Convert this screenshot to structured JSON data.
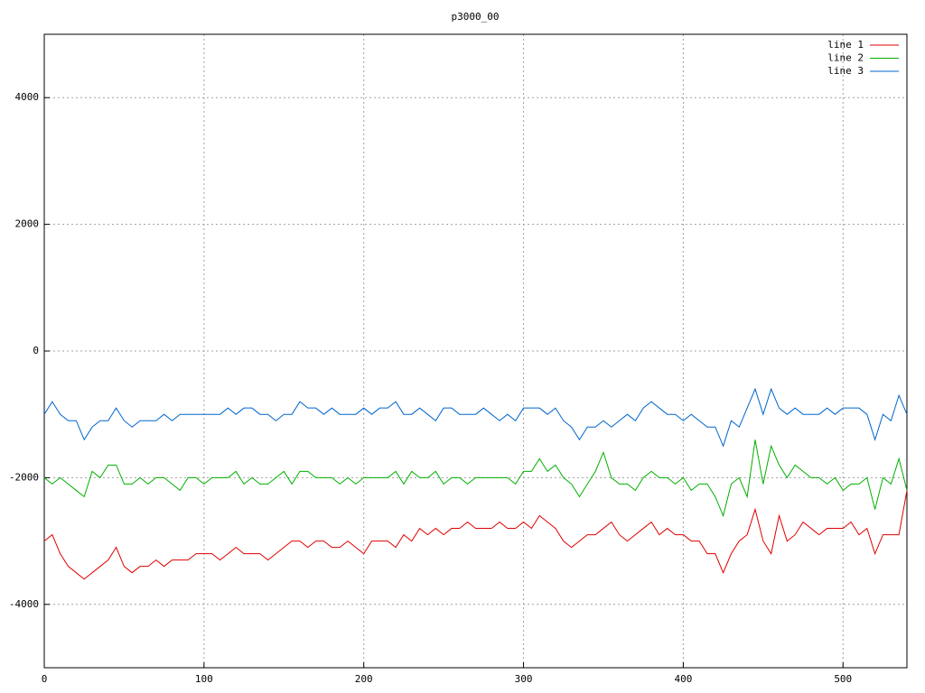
{
  "chart_data": {
    "type": "line",
    "title": "p3000_00",
    "x": [
      0,
      5,
      10,
      15,
      20,
      25,
      30,
      35,
      40,
      45,
      50,
      55,
      60,
      65,
      70,
      75,
      80,
      85,
      90,
      95,
      100,
      105,
      110,
      115,
      120,
      125,
      130,
      135,
      140,
      145,
      150,
      155,
      160,
      165,
      170,
      175,
      180,
      185,
      190,
      195,
      200,
      205,
      210,
      215,
      220,
      225,
      230,
      235,
      240,
      245,
      250,
      255,
      260,
      265,
      270,
      275,
      280,
      285,
      290,
      295,
      300,
      305,
      310,
      315,
      320,
      325,
      330,
      335,
      340,
      345,
      350,
      355,
      360,
      365,
      370,
      375,
      380,
      385,
      390,
      395,
      400,
      405,
      410,
      415,
      420,
      425,
      430,
      435,
      440,
      445,
      450,
      455,
      460,
      465,
      470,
      475,
      480,
      485,
      490,
      495,
      500,
      505,
      510,
      515,
      520,
      525,
      530,
      535,
      540
    ],
    "series": [
      {
        "name": "line 1",
        "color": "#e00000",
        "values": [
          -3000,
          -2900,
          -3200,
          -3400,
          -3500,
          -3600,
          -3500,
          -3400,
          -3300,
          -3100,
          -3400,
          -3500,
          -3400,
          -3400,
          -3300,
          -3400,
          -3300,
          -3300,
          -3300,
          -3200,
          -3200,
          -3200,
          -3300,
          -3200,
          -3100,
          -3200,
          -3200,
          -3200,
          -3300,
          -3200,
          -3100,
          -3000,
          -3000,
          -3100,
          -3000,
          -3000,
          -3100,
          -3100,
          -3000,
          -3100,
          -3200,
          -3000,
          -3000,
          -3000,
          -3100,
          -2900,
          -3000,
          -2800,
          -2900,
          -2800,
          -2900,
          -2800,
          -2800,
          -2700,
          -2800,
          -2800,
          -2800,
          -2700,
          -2800,
          -2800,
          -2700,
          -2800,
          -2600,
          -2700,
          -2800,
          -3000,
          -3100,
          -3000,
          -2900,
          -2900,
          -2800,
          -2700,
          -2900,
          -3000,
          -2900,
          -2800,
          -2700,
          -2900,
          -2800,
          -2900,
          -2900,
          -3000,
          -3000,
          -3200,
          -3200,
          -3500,
          -3200,
          -3000,
          -2900,
          -2500,
          -3000,
          -3200,
          -2600,
          -3000,
          -2900,
          -2700,
          -2800,
          -2900,
          -2800,
          -2800,
          -2800,
          -2700,
          -2900,
          -2800,
          -3200,
          -2900,
          -2900,
          -2900,
          -2200
        ]
      },
      {
        "name": "line 2",
        "color": "#00b000",
        "values": [
          -2000,
          -2100,
          -2000,
          -2100,
          -2200,
          -2300,
          -1900,
          -2000,
          -1800,
          -1800,
          -2100,
          -2100,
          -2000,
          -2100,
          -2000,
          -2000,
          -2100,
          -2200,
          -2000,
          -2000,
          -2100,
          -2000,
          -2000,
          -2000,
          -1900,
          -2100,
          -2000,
          -2100,
          -2100,
          -2000,
          -1900,
          -2100,
          -1900,
          -1900,
          -2000,
          -2000,
          -2000,
          -2100,
          -2000,
          -2100,
          -2000,
          -2000,
          -2000,
          -2000,
          -1900,
          -2100,
          -1900,
          -2000,
          -2000,
          -1900,
          -2100,
          -2000,
          -2000,
          -2100,
          -2000,
          -2000,
          -2000,
          -2000,
          -2000,
          -2100,
          -1900,
          -1900,
          -1700,
          -1900,
          -1800,
          -2000,
          -2100,
          -2300,
          -2100,
          -1900,
          -1600,
          -2000,
          -2100,
          -2100,
          -2200,
          -2000,
          -1900,
          -2000,
          -2000,
          -2100,
          -2000,
          -2200,
          -2100,
          -2100,
          -2300,
          -2600,
          -2100,
          -2000,
          -2300,
          -1400,
          -2100,
          -1500,
          -1800,
          -2000,
          -1800,
          -1900,
          -2000,
          -2000,
          -2100,
          -2000,
          -2200,
          -2100,
          -2100,
          -2000,
          -2500,
          -2000,
          -2100,
          -1700,
          -2200
        ]
      },
      {
        "name": "line 3",
        "color": "#0066cc",
        "values": [
          -1000,
          -800,
          -1000,
          -1100,
          -1100,
          -1400,
          -1200,
          -1100,
          -1100,
          -900,
          -1100,
          -1200,
          -1100,
          -1100,
          -1100,
          -1000,
          -1100,
          -1000,
          -1000,
          -1000,
          -1000,
          -1000,
          -1000,
          -900,
          -1000,
          -900,
          -900,
          -1000,
          -1000,
          -1100,
          -1000,
          -1000,
          -800,
          -900,
          -900,
          -1000,
          -900,
          -1000,
          -1000,
          -1000,
          -900,
          -1000,
          -900,
          -900,
          -800,
          -1000,
          -1000,
          -900,
          -1000,
          -1100,
          -900,
          -900,
          -1000,
          -1000,
          -1000,
          -900,
          -1000,
          -1100,
          -1000,
          -1100,
          -900,
          -900,
          -900,
          -1000,
          -900,
          -1100,
          -1200,
          -1400,
          -1200,
          -1200,
          -1100,
          -1200,
          -1100,
          -1000,
          -1100,
          -900,
          -800,
          -900,
          -1000,
          -1000,
          -1100,
          -1000,
          -1100,
          -1200,
          -1200,
          -1500,
          -1100,
          -1200,
          -900,
          -600,
          -1000,
          -600,
          -900,
          -1000,
          -900,
          -1000,
          -1000,
          -1000,
          -900,
          -1000,
          -900,
          -900,
          -900,
          -1000,
          -1400,
          -1000,
          -1100,
          -700,
          -1000
        ]
      }
    ],
    "xlim": [
      0,
      540
    ],
    "xticks": [
      0,
      100,
      200,
      300,
      400,
      500
    ],
    "ylim": [
      -5000,
      5000
    ],
    "yticks": [
      -4000,
      -2000,
      0,
      2000,
      4000
    ],
    "grid": true,
    "legend": "top-right"
  }
}
